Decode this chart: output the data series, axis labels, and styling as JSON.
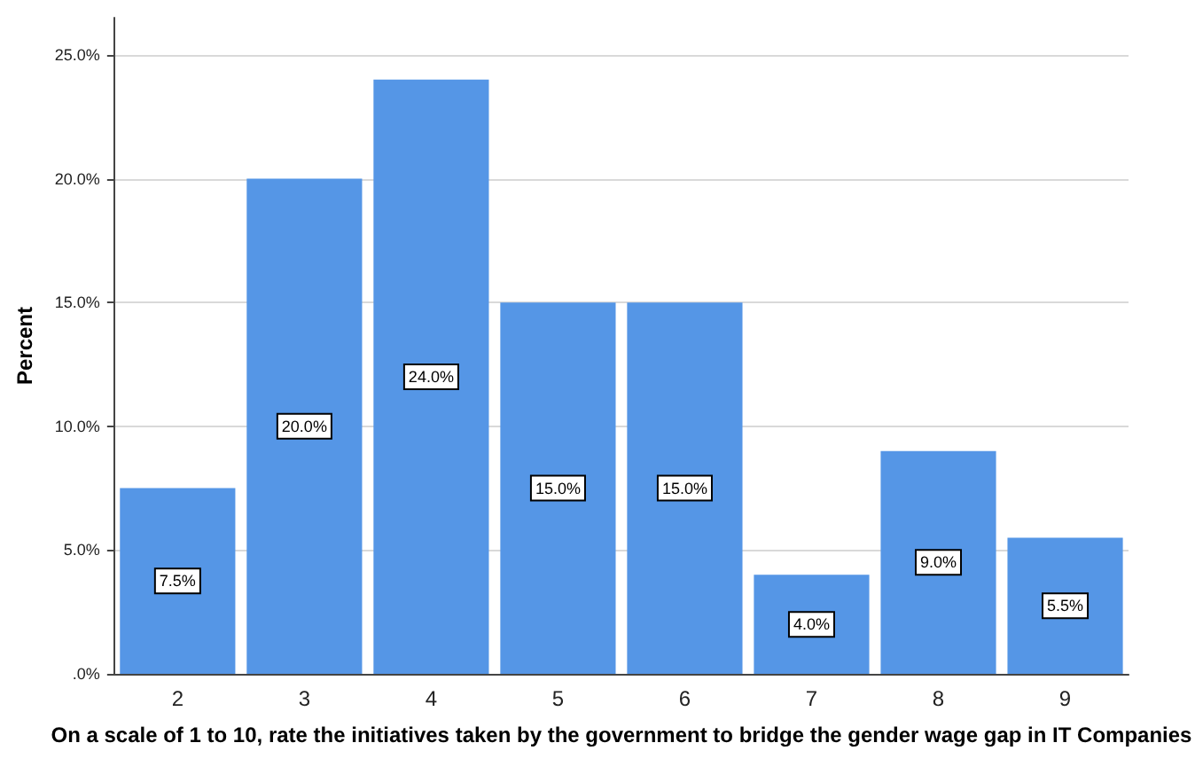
{
  "chart_data": {
    "type": "bar",
    "xlabel": "On a scale of 1 to 10, rate the initiatives taken by the government to bridge the gender wage gap in IT Companies",
    "ylabel": "Percent",
    "categories": [
      "2",
      "3",
      "4",
      "5",
      "6",
      "7",
      "8",
      "9"
    ],
    "values": [
      7.5,
      20,
      24,
      15,
      15,
      4,
      9,
      5.5
    ],
    "value_labels": [
      "7.5%",
      "20.0%",
      "24.0%",
      "15.0%",
      "15.0%",
      "4.0%",
      "9.0%",
      "5.5%"
    ],
    "color": "#5596e6",
    "ylim": [
      0,
      26.5
    ],
    "yticks": [
      {
        "value": 0,
        "label": ".0%"
      },
      {
        "value": 5,
        "label": "5.0%"
      },
      {
        "value": 10,
        "label": "10.0%"
      },
      {
        "value": 15,
        "label": "15.0%"
      },
      {
        "value": 20,
        "label": "20.0%"
      },
      {
        "value": 25,
        "label": "25.0%"
      }
    ],
    "grid": "y"
  }
}
